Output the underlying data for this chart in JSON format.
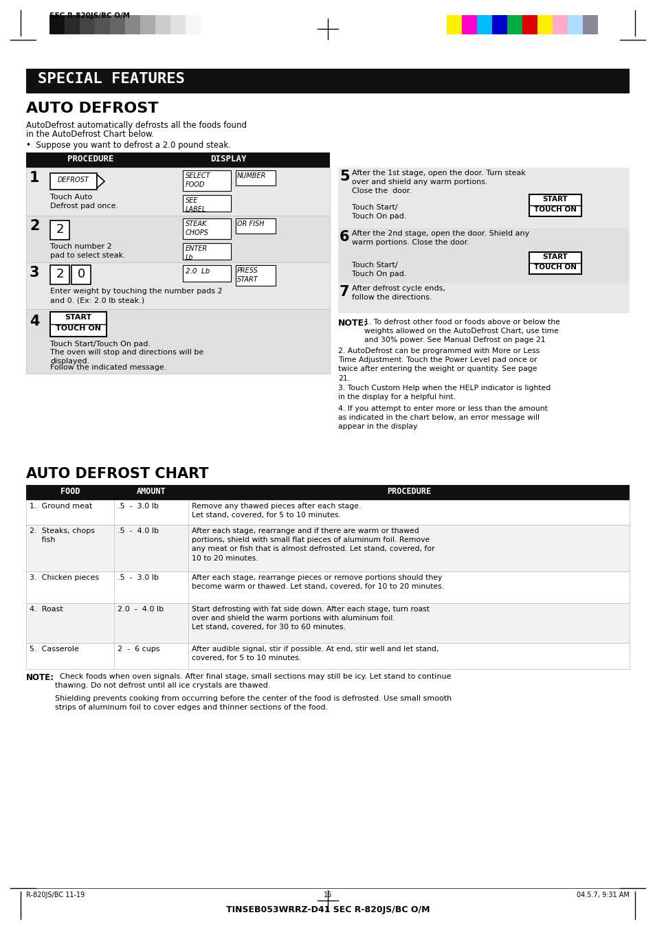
{
  "page_bg": "#ffffff",
  "title_special_features": "SPECIAL FEATURES",
  "title_auto_defrost": "AUTO DEFROST",
  "title_auto_defrost_chart": "AUTO DEFROST CHART",
  "intro_text1": "AutoDefrost automatically defrosts all the foods found",
  "intro_text2": "in the AutoDefrost Chart below.",
  "bullet_text": "Suppose you want to defrost a 2.0 pound steak.",
  "procedure_label": "PROCEDURE",
  "display_label": "DISPLAY",
  "step1_num": "1",
  "step1_btn": "DEFROST",
  "step1_disp1": "SELECT\nFOOD",
  "step1_disp2": "NUMBER",
  "step1_disp3": "SEE\nLABEL",
  "step1_text": "Touch Auto\nDefrost pad once.",
  "step2_num": "2",
  "step2_key": "2",
  "step2_disp1": "STEAK\nCHOPS",
  "step2_disp2": "OR FISH",
  "step2_disp3": "ENTER\nLb",
  "step2_text": "Touch number 2\npad to select steak.",
  "step3_num": "3",
  "step3_disp1": "2.0  Lb",
  "step3_disp2": "PRESS\nSTART",
  "step3_text": "Enter weight by touching the number pads 2\nand 0. (Ex: 2.0 lb steak.)",
  "step4_num": "4",
  "step4_text1": "Touch Start/Touch On pad.",
  "step4_text2": "The oven will stop and directions will be\ndisplayed.",
  "step4_text3": "Follow the indicated message.",
  "step5_num": "5",
  "step5_text": "After the 1st stage, open the door. Turn steak\nover and shield any warm portions.\nClose the  door.",
  "step5_touch": "Touch Start/\nTouch On pad.",
  "step6_num": "6",
  "step6_text": "After the 2nd stage, open the door. Shield any\nwarm portions. Close the door.",
  "step6_touch": "Touch Start/\nTouch On pad.",
  "step7_num": "7",
  "step7_text": "After defrost cycle ends,\nfollow the directions.",
  "note_header": "NOTE:",
  "note1": "1. To defrost other food or foods above or below the\nweights allowed on the AutoDefrost Chart, use time\nand 30% power. See Manual Defrost on page 21",
  "note2": "2. AutoDefrost can be programmed with More or Less\nTime Adjustment. Touch the Power Level pad once or\ntwice after entering the weight or quantity. See page\n21.",
  "note3": "3. Touch Custom Help when the HELP indicator is lighted\nin the display for a helpful hint.",
  "note4": "4. If you attempt to enter more or less than the amount\nas indicated in the chart below, an error message will\nappear in the display.",
  "chart_col1": "FOOD",
  "chart_col2": "AMOUNT",
  "chart_col3": "PROCEDURE",
  "chart_rows": [
    {
      "food": "1.  Ground meat",
      "amount": ".5  -  3.0 lb",
      "procedure": "Remove any thawed pieces after each stage.\nLet stand, covered, for 5 to 10 minutes."
    },
    {
      "food": "2.  Steaks, chops\n     fish",
      "amount": ".5  -  4.0 lb",
      "procedure": "After each stage, rearrange and if there are warm or thawed\nportions, shield with small flat pieces of aluminum foil. Remove\nany meat or fish that is almost defrosted. Let stand, covered, for\n10 to 20 minutes."
    },
    {
      "food": "3.  Chicken pieces",
      "amount": ".5  -  3.0 lb",
      "procedure": "After each stage, rearrange pieces or remove portions should they\nbecome warm or thawed. Let stand, covered, for 10 to 20 minutes."
    },
    {
      "food": "4.  Roast",
      "amount": "2.0  -  4.0 lb",
      "procedure": "Start defrosting with fat side down. After each stage, turn roast\nover and shield the warm portions with aluminum foil.\nLet stand, covered, for 30 to 60 minutes."
    },
    {
      "food": "5.  Casserole",
      "amount": "2  -  6 cups",
      "procedure": "After audible signal, stir if possible. At end, stir well and let stand,\ncovered, for 5 to 10 minutes."
    }
  ],
  "chart_note": "NOTE:",
  "chart_note_text1": "  Check foods when oven signals. After final stage, small sections may still be icy. Let stand to continue",
  "chart_note_text2": "thawing. Do not defrost until all ice crystals are thawed.",
  "chart_note_text3": "Shielding prevents cooking from occurring before the center of the food is defrosted. Use small smooth\nstrips of aluminum foil to cover edges and thinner sections of the food.",
  "page_num": "16",
  "footer_left": "R-820JS/BC 11-19",
  "footer_center": "16",
  "footer_right": "04.5.7, 9:31 AM",
  "bottom_text": "TINSEB053WRRZ-D41 SEC R-820JS/BC O/M",
  "header_text": "SEC R-820JS/BC O/M"
}
